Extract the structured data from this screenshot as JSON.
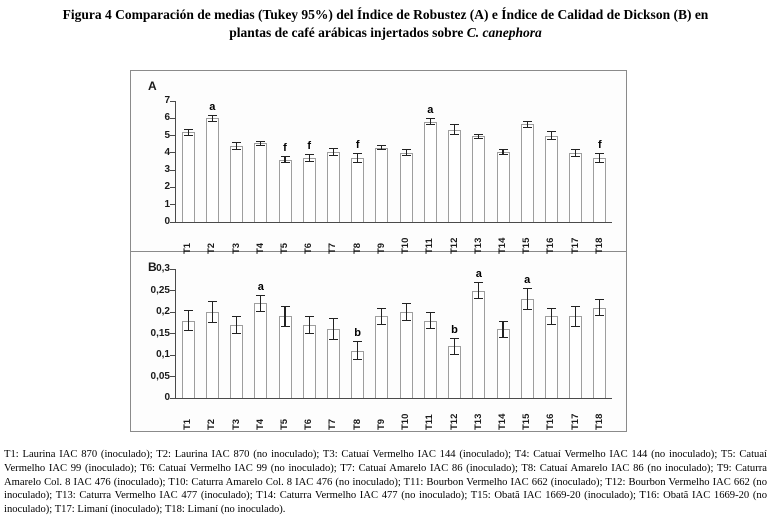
{
  "title": {
    "line1": "Figura 4 Comparación de medias (Tukey 95%) del Índice de Robustez (A) e Índice de Calidad de Dickson (B) en",
    "line2_prefix": "plantas de café arábicas injertados sobre ",
    "line2_italic": "C. canephora"
  },
  "caption": {
    "text": "T1: Laurina IAC 870 (inoculado); T2: Laurina IAC 870 (no inoculado); T3: Catuaí Vermelho IAC 144 (inoculado); T4: Catuaí Vermelho IAC 144 (no inoculado); T5: Catuaí Vermelho IAC 99 (inoculado); T6: Catuaí Vermelho IAC 99 (no inoculado); T7: Catuaí Amarelo IAC 86 (inoculado); T8: Catuaí Amarelo IAC 86 (no inoculado); T9: Caturra Amarelo Col. 8 IAC 476 (inoculado); T10: Caturra Amarelo Col. 8 IAC 476 (no inoculado); T11: Bourbon Vermelho IAC 662 (inoculado); T12: Bourbon Vermelho IAC 662 (no inoculado); T13: Caturra Vermelho IAC 477 (inoculado); T14: Caturra Vermelho IAC 477 (no inoculado); T15: Obatã IAC 1669-20 (inoculado); T16: Obatã IAC 1669-20 (no inoculado); T17: Limaní (inoculado); T18: Limaní (no inoculado)."
  },
  "colors": {
    "bar_fill": "#ffffff",
    "bar_border": "#9e9e9e",
    "error_bar": "#222222",
    "axis": "#4a4a4a",
    "figure_border": "#8a8a8a",
    "text": "#000000"
  },
  "chart_data": [
    {
      "type": "bar",
      "panel": "A",
      "title": "Índice de Robustez",
      "categories": [
        "T1",
        "T2",
        "T3",
        "T4",
        "T5",
        "T6",
        "T7",
        "T8",
        "T9",
        "T10",
        "T11",
        "T12",
        "T13",
        "T14",
        "T15",
        "T16",
        "T17",
        "T18"
      ],
      "values": [
        5.2,
        6.0,
        4.4,
        4.55,
        3.6,
        3.7,
        4.05,
        3.7,
        4.3,
        4.0,
        5.8,
        5.35,
        4.95,
        4.05,
        5.65,
        5.0,
        4.0,
        3.7
      ],
      "errors": [
        0.2,
        0.2,
        0.25,
        0.15,
        0.2,
        0.25,
        0.25,
        0.3,
        0.15,
        0.2,
        0.2,
        0.3,
        0.15,
        0.2,
        0.2,
        0.25,
        0.25,
        0.3
      ],
      "letters": [
        "",
        "a",
        "",
        "",
        "f",
        "f",
        "",
        "f",
        "",
        "",
        "a",
        "",
        "",
        "",
        "",
        "",
        "",
        "f"
      ],
      "xlabel": "",
      "ylabel": "",
      "ylim": [
        0,
        7
      ],
      "yticks": [
        "0",
        "1",
        "2",
        "3",
        "4",
        "5",
        "6",
        "7"
      ],
      "grid": false,
      "legend": "none",
      "error_bars": true
    },
    {
      "type": "bar",
      "panel": "B",
      "title": "Índice de Calidad de Dickson",
      "categories": [
        "T1",
        "T2",
        "T3",
        "T4",
        "T5",
        "T6",
        "T7",
        "T8",
        "T9",
        "T10",
        "T11",
        "T12",
        "T13",
        "T14",
        "T15",
        "T16",
        "T17",
        "T18"
      ],
      "values": [
        0.18,
        0.2,
        0.17,
        0.22,
        0.19,
        0.17,
        0.16,
        0.11,
        0.19,
        0.2,
        0.18,
        0.12,
        0.25,
        0.16,
        0.23,
        0.19,
        0.19,
        0.21
      ],
      "errors": [
        0.025,
        0.025,
        0.02,
        0.02,
        0.025,
        0.02,
        0.025,
        0.022,
        0.02,
        0.022,
        0.02,
        0.02,
        0.02,
        0.02,
        0.025,
        0.02,
        0.025,
        0.02
      ],
      "letters": [
        "",
        "",
        "",
        "a",
        "",
        "",
        "",
        "b",
        "",
        "",
        "",
        "b",
        "a",
        "",
        "a",
        "",
        "",
        ""
      ],
      "xlabel": "",
      "ylabel": "",
      "ylim": [
        0,
        0.3
      ],
      "yticks": [
        "0",
        "0,05",
        "0,1",
        "0,15",
        "0,2",
        "0,25",
        "0,3"
      ],
      "grid": false,
      "legend": "none",
      "error_bars": true
    }
  ]
}
